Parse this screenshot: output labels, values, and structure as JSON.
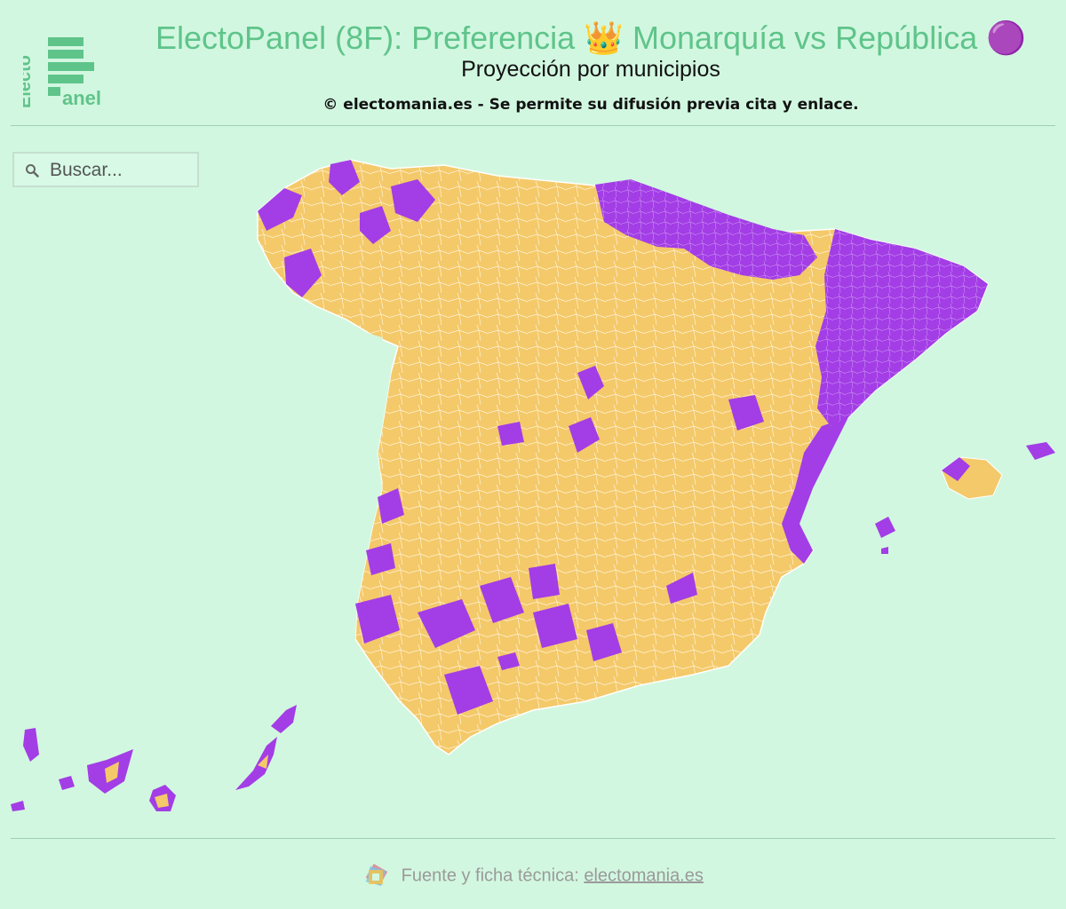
{
  "header": {
    "title": "ElectoPanel (8F): Preferencia 👑 Monarquía vs República 🟣",
    "subtitle": "Proyección por municipios",
    "copyright": "© electomania.es - Se permite su difusión previa cita y enlace."
  },
  "logo": {
    "line1": "Electo",
    "line2": "anel"
  },
  "search": {
    "placeholder": "Buscar...",
    "value": ""
  },
  "map": {
    "legend_colors": {
      "monarquia": "#f4c96a",
      "republica": "#a33de6"
    },
    "background": "#d2f7e0",
    "border_color": "#ffffff"
  },
  "footer": {
    "label": "Fuente y ficha técnica:",
    "link": "electomania.es"
  }
}
